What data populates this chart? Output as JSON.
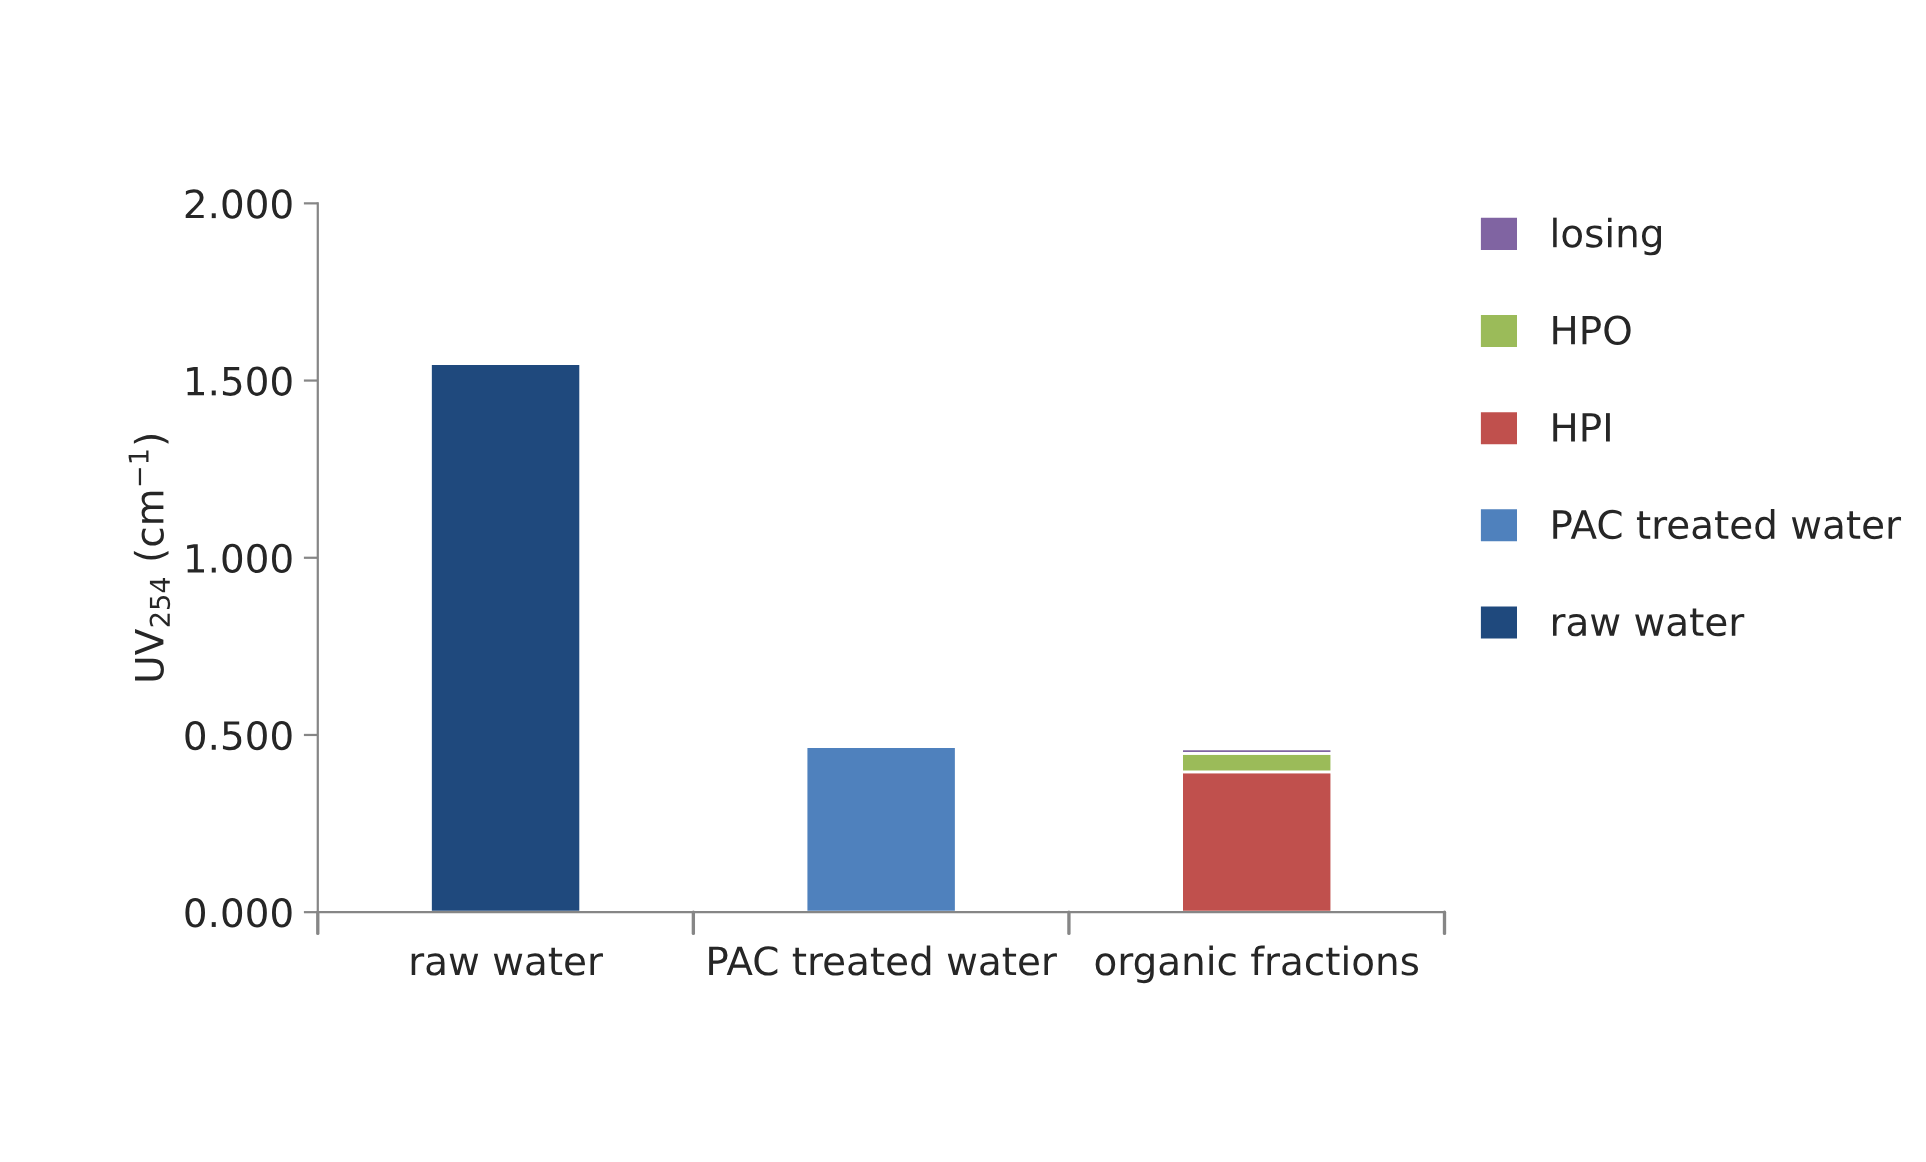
{
  "chart_data": {
    "type": "bar",
    "stacked": true,
    "categories": [
      "raw water",
      "PAC treated water",
      "organic fractions"
    ],
    "ylabel": "UV$_{254}$ (cm$^{−1}$)",
    "series": [
      {
        "name": "raw water",
        "color": "#1f497d",
        "values": [
          1.548,
          null,
          null
        ]
      },
      {
        "name": "PAC treated water",
        "color": "#4f81bd",
        "values": [
          null,
          0.467,
          null
        ]
      },
      {
        "name": "HPI",
        "color": "#c0504d",
        "values": [
          null,
          null,
          0.396
        ]
      },
      {
        "name": "HPO",
        "color": "#9bbb59",
        "values": [
          null,
          null,
          0.052
        ]
      },
      {
        "name": "losing",
        "color": "#8064a2",
        "values": [
          null,
          null,
          0.013
        ]
      }
    ],
    "ylim": [
      0,
      2
    ],
    "yticks": [
      {
        "value": 0,
        "label": "0.000"
      },
      {
        "value": 0.5,
        "label": "0.500"
      },
      {
        "value": 1,
        "label": "1.000"
      },
      {
        "value": 1.5,
        "label": "1.500"
      },
      {
        "value": 2,
        "label": "2.000"
      }
    ],
    "grid": false,
    "legend": "right"
  }
}
